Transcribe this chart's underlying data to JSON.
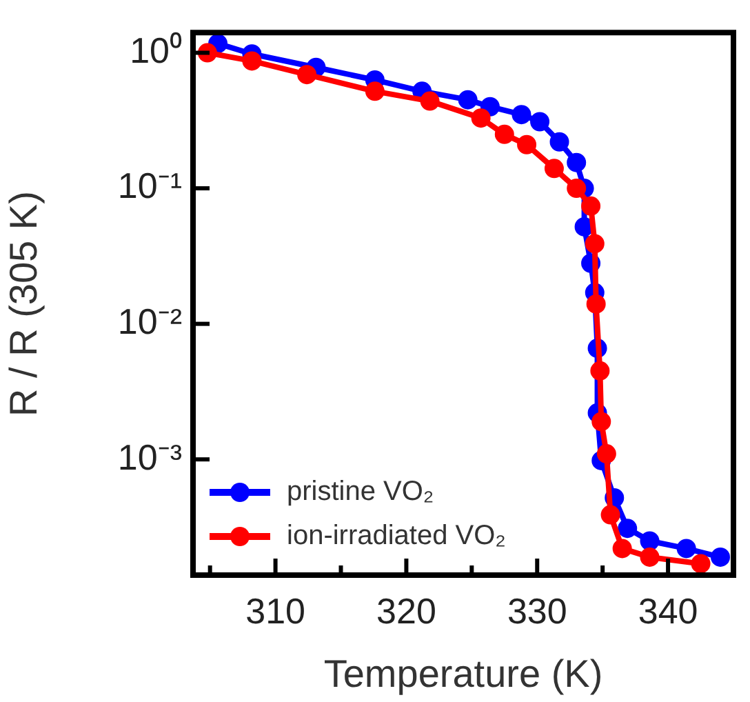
{
  "chart_data": {
    "type": "line",
    "xlabel": "Temperature (K)",
    "ylabel": "R / R (305 K)",
    "log": "y",
    "marker": "circle",
    "line_style": "solid",
    "legend": "bottom left",
    "grid": false,
    "xlim": [
      303.7,
      345
    ],
    "xticks": [
      {
        "value": 305,
        "label": null
      },
      310,
      {
        "value": 315,
        "label": null
      },
      320,
      {
        "value": 325,
        "label": null
      },
      330,
      {
        "value": 335,
        "label": null
      },
      340,
      {
        "value": 345,
        "label": null
      }
    ],
    "ylim": [
      0.00014,
      1.41
    ],
    "yticks": [
      {
        "value": 0.001,
        "label": "10⁻³"
      },
      {
        "value": 0.01,
        "label": "10⁻²"
      },
      {
        "value": 0.1,
        "label": "10⁻¹"
      },
      {
        "value": 1,
        "label": "10⁰"
      }
    ],
    "series": [
      {
        "name": "pristine VO₂",
        "color": "#0000ff",
        "x": [
          305.6,
          308.2,
          313.1,
          317.6,
          321.2,
          324.7,
          326.4,
          328.8,
          330.2,
          331.7,
          333.0,
          333.6,
          333.6,
          334.1,
          334.4,
          334.6,
          334.6,
          334.9,
          335.9,
          336.9,
          338.6,
          341.4,
          344.0
        ],
        "values": [
          1.17,
          0.98,
          0.78,
          0.63,
          0.52,
          0.45,
          0.4,
          0.35,
          0.31,
          0.22,
          0.155,
          0.1,
          0.052,
          0.028,
          0.017,
          0.0066,
          0.0022,
          0.00098,
          0.00052,
          0.00031,
          0.00025,
          0.00022,
          0.00019
        ]
      },
      {
        "name": "ion-irradiated VO₂",
        "color": "#ff0000",
        "x": [
          304.8,
          308.2,
          312.4,
          317.6,
          321.8,
          325.7,
          327.5,
          329.2,
          331.3,
          333.0,
          334.1,
          334.4,
          334.5,
          334.8,
          334.9,
          335.3,
          335.6,
          336.5,
          338.6,
          342.5
        ],
        "values": [
          1.0,
          0.87,
          0.69,
          0.52,
          0.44,
          0.33,
          0.25,
          0.21,
          0.14,
          0.1,
          0.074,
          0.039,
          0.014,
          0.0045,
          0.0019,
          0.0011,
          0.00039,
          0.00022,
          0.00019,
          0.00017
        ]
      }
    ]
  }
}
